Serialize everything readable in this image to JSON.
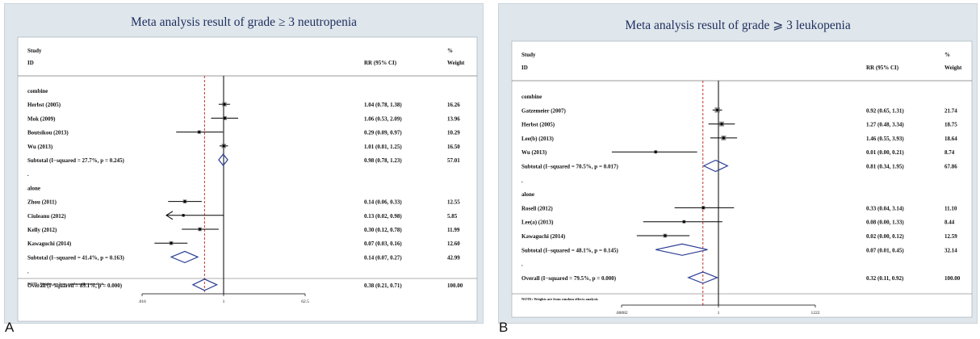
{
  "colors": {
    "panel_bg": "#dfe7ec",
    "plot_bg": "#ffffff",
    "title": "#1f2d5e",
    "diamond": "#2b3d94",
    "dashed_line": "#c0392b",
    "square": "#666666"
  },
  "chart_data": [
    {
      "type": "forest",
      "panel_letter": "A",
      "title": "Meta analysis result of grade ≥ 3 neutropenia",
      "header": {
        "study": "Study",
        "id": "ID",
        "rr": "RR (95% CI)",
        "pct": "%",
        "weight": "Weight"
      },
      "x_scale": "log",
      "xlim": [
        0.016,
        62.5
      ],
      "x_ticks": [
        {
          "value": 0.016,
          "label": ".016"
        },
        {
          "value": 1,
          "label": "1"
        },
        {
          "value": 62.5,
          "label": "62.5"
        }
      ],
      "overall_line_value": 0.38,
      "note": "NOTE: Weights are from random effects analysis",
      "rows": [
        {
          "kind": "group",
          "label": "combine"
        },
        {
          "kind": "study",
          "label": "Herbst (2005)",
          "rr": 1.04,
          "lo": 0.78,
          "hi": 1.38,
          "ci_text": "1.04 (0.78, 1.38)",
          "weight": "16.26"
        },
        {
          "kind": "study",
          "label": "Mok (2009)",
          "rr": 1.06,
          "lo": 0.53,
          "hi": 2.09,
          "ci_text": "1.06 (0.53, 2.09)",
          "weight": "13.96"
        },
        {
          "kind": "study",
          "label": "Boutsikou (2013)",
          "rr": 0.29,
          "lo": 0.09,
          "hi": 0.97,
          "ci_text": "0.29 (0.09, 0.97)",
          "weight": "10.29"
        },
        {
          "kind": "study",
          "label": "Wu (2013)",
          "rr": 1.01,
          "lo": 0.81,
          "hi": 1.25,
          "ci_text": "1.01 (0.81, 1.25)",
          "weight": "16.50"
        },
        {
          "kind": "subtotal",
          "label": "Subtotal  (I−squared = 27.7%, p = 0.245)",
          "rr": 0.98,
          "lo": 0.78,
          "hi": 1.23,
          "ci_text": "0.98 (0.78, 1.23)",
          "weight": "57.01"
        },
        {
          "kind": "dot"
        },
        {
          "kind": "group",
          "label": "alone"
        },
        {
          "kind": "study",
          "label": "Zhou (2011)",
          "rr": 0.14,
          "lo": 0.06,
          "hi": 0.33,
          "ci_text": "0.14 (0.06, 0.33)",
          "weight": "12.55"
        },
        {
          "kind": "study",
          "label": "Ciuleanu (2012)",
          "rr": 0.13,
          "lo": 0.02,
          "hi": 0.98,
          "ci_text": "0.13 (0.02, 0.98)",
          "weight": "5.85",
          "arrow_left": true
        },
        {
          "kind": "study",
          "label": "Kelly (2012)",
          "rr": 0.3,
          "lo": 0.12,
          "hi": 0.78,
          "ci_text": "0.30 (0.12, 0.78)",
          "weight": "11.99"
        },
        {
          "kind": "study",
          "label": "Kawaguchi (2014)",
          "rr": 0.07,
          "lo": 0.03,
          "hi": 0.16,
          "ci_text": "0.07 (0.03, 0.16)",
          "weight": "12.60"
        },
        {
          "kind": "subtotal",
          "label": "Subtotal  (I−squared = 41.4%, p = 0.163)",
          "rr": 0.14,
          "lo": 0.07,
          "hi": 0.27,
          "ci_text": "0.14 (0.07, 0.27)",
          "weight": "42.99"
        },
        {
          "kind": "dot"
        },
        {
          "kind": "overall",
          "label": "Overall  (I−squared = 89.1%, p = 0.000)",
          "rr": 0.38,
          "lo": 0.21,
          "hi": 0.71,
          "ci_text": "0.38 (0.21, 0.71)",
          "weight": "100.00"
        }
      ]
    },
    {
      "type": "forest",
      "panel_letter": "B",
      "title": "Meta analysis result of grade ⩾ 3 leukopenia",
      "header": {
        "study": "Study",
        "id": "ID",
        "rr": "RR (95% CI)",
        "pct": "%",
        "weight": "Weight"
      },
      "x_scale": "log",
      "xlim": [
        0.00082,
        1222
      ],
      "x_ticks": [
        {
          "value": 0.00082,
          "label": ".00082"
        },
        {
          "value": 1,
          "label": "1"
        },
        {
          "value": 1222,
          "label": "1222"
        }
      ],
      "overall_line_value": 0.32,
      "note": "NOTE: Weights are from random effects analysis",
      "rows": [
        {
          "kind": "group",
          "label": "combine"
        },
        {
          "kind": "study",
          "label": "Gatzemeier (2007)",
          "rr": 0.92,
          "lo": 0.65,
          "hi": 1.31,
          "ci_text": "0.92 (0.65, 1.31)",
          "weight": "21.74"
        },
        {
          "kind": "study",
          "label": "Herbst (2005)",
          "rr": 1.27,
          "lo": 0.48,
          "hi": 3.34,
          "ci_text": "1.27 (0.48, 3.34)",
          "weight": "18.75"
        },
        {
          "kind": "study",
          "label": "Lee(b) (2013)",
          "rr": 1.46,
          "lo": 0.55,
          "hi": 3.93,
          "ci_text": "1.46 (0.55, 3.93)",
          "weight": "18.64"
        },
        {
          "kind": "study",
          "label": "Wu (2013)",
          "rr": 0.01,
          "lo": 0.0,
          "hi": 0.21,
          "ci_text": "0.01 (0.00, 0.21)",
          "weight": "8.74",
          "lo_draw": 0.0004
        },
        {
          "kind": "subtotal",
          "label": "Subtotal  (I−squared = 70.5%, p = 0.017)",
          "rr": 0.81,
          "lo": 0.34,
          "hi": 1.95,
          "ci_text": "0.81 (0.34, 1.95)",
          "weight": "67.86"
        },
        {
          "kind": "dot"
        },
        {
          "kind": "group",
          "label": "alone"
        },
        {
          "kind": "study",
          "label": "Rosell (2012)",
          "rr": 0.33,
          "lo": 0.04,
          "hi": 3.14,
          "ci_text": "0.33 (0.04, 3.14)",
          "weight": "11.10"
        },
        {
          "kind": "study",
          "label": "Lee(a) (2013)",
          "rr": 0.08,
          "lo": 0.0,
          "hi": 1.33,
          "ci_text": "0.08 (0.00, 1.33)",
          "weight": "8.44",
          "lo_draw": 0.004
        },
        {
          "kind": "study",
          "label": "Kawaguchi (2014)",
          "rr": 0.02,
          "lo": 0.0,
          "hi": 0.12,
          "ci_text": "0.02 (0.00, 0.12)",
          "weight": "12.59",
          "lo_draw": 0.0025
        },
        {
          "kind": "subtotal",
          "label": "Subtotal  (I−squared = 48.1%, p = 0.145)",
          "rr": 0.07,
          "lo": 0.01,
          "hi": 0.45,
          "ci_text": "0.07 (0.01, 0.45)",
          "weight": "32.14"
        },
        {
          "kind": "dot"
        },
        {
          "kind": "overall",
          "label": "Overall  (I−squared = 79.5%, p = 0.000)",
          "rr": 0.32,
          "lo": 0.11,
          "hi": 0.92,
          "ci_text": "0.32 (0.11, 0.92)",
          "weight": "100.00"
        }
      ]
    }
  ]
}
